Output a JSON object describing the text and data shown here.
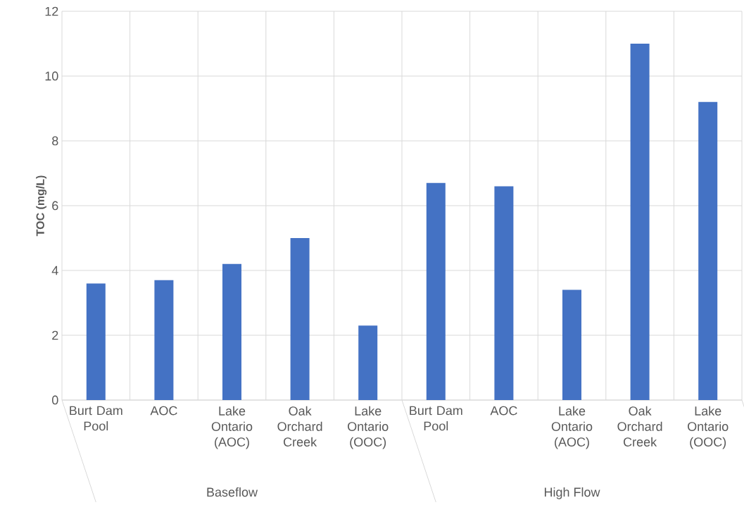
{
  "chart_data": {
    "type": "bar",
    "ylabel": "TOC (mg/L)",
    "categories": [
      "Burt Dam Pool",
      "AOC",
      "Lake Ontario (AOC)",
      "Oak Orchard Creek",
      "Lake Ontario (OOC)",
      "Burt Dam Pool",
      "AOC",
      "Lake Ontario (AOC)",
      "Oak Orchard Creek",
      "Lake Ontario (OOC)"
    ],
    "values": [
      3.6,
      3.7,
      4.2,
      5.0,
      2.3,
      6.7,
      6.6,
      3.4,
      11.0,
      9.2
    ],
    "color": "#4472c4",
    "ylim": [
      0,
      12
    ],
    "yticks": [
      0,
      2,
      4,
      6,
      8,
      10,
      12
    ],
    "grid": true,
    "annotations": [
      "Baseflow",
      "High Flow"
    ]
  }
}
